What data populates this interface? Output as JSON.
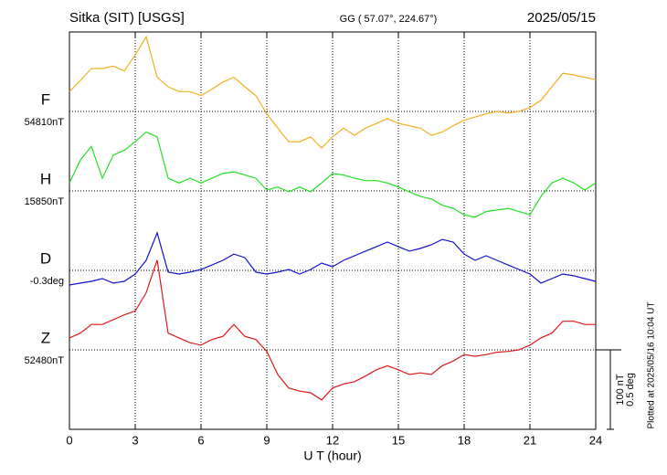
{
  "chart_data": {
    "type": "line",
    "title": "Sitka (SIT)  [USGS]",
    "subtitle": "GG ( 57.07°, 224.67°)",
    "date": "2025/05/15",
    "xlabel": "U T (hour)",
    "note": "Plotted at 2025/05/16 10:04 UT",
    "xlim": [
      0,
      24
    ],
    "xticks": [
      0,
      3,
      6,
      9,
      12,
      15,
      18,
      21,
      24
    ],
    "grid": true,
    "scale_bar": [
      {
        "value": 100,
        "label": "100 nT"
      },
      {
        "value": 0.5,
        "label": "0.5 deg"
      }
    ],
    "x": [
      0,
      0.5,
      1,
      1.5,
      2,
      2.5,
      3,
      3.5,
      4,
      4.5,
      5,
      5.5,
      6,
      6.5,
      7,
      7.5,
      8,
      8.5,
      9,
      9.5,
      10,
      10.5,
      11,
      11.5,
      12,
      12.5,
      13,
      13.5,
      14,
      14.5,
      15,
      15.5,
      16,
      16.5,
      17,
      17.5,
      18,
      18.5,
      19,
      19.5,
      20,
      20.5,
      21,
      21.5,
      22,
      22.5,
      23,
      23.5,
      24
    ],
    "series": [
      {
        "name": "F",
        "color": "#f0b020",
        "baseline": {
          "value": 54810,
          "label": "54810nT"
        },
        "values": [
          54835,
          54849,
          54864,
          54864,
          54867,
          54861,
          54881,
          54904,
          54853,
          54841,
          54835,
          54835,
          54830,
          54838,
          54847,
          54853,
          54841,
          54830,
          54807,
          54789,
          54772,
          54772,
          54778,
          54764,
          54778,
          54789,
          54780,
          54789,
          54795,
          54801,
          54795,
          54792,
          54789,
          54780,
          54784,
          54792,
          54799,
          54803,
          54807,
          54810,
          54808,
          54810,
          54815,
          54824,
          54841,
          54858,
          54856,
          54853,
          54850
        ]
      },
      {
        "name": "H",
        "color": "#22e022",
        "baseline": {
          "value": 15850,
          "label": "15850nT"
        },
        "values": [
          15860,
          15889,
          15906,
          15866,
          15895,
          15901,
          15912,
          15924,
          15918,
          15866,
          15860,
          15866,
          15860,
          15866,
          15872,
          15874,
          15870,
          15866,
          15851,
          15855,
          15849,
          15855,
          15849,
          15860,
          15872,
          15870,
          15866,
          15863,
          15863,
          15860,
          15855,
          15849,
          15843,
          15840,
          15832,
          15828,
          15820,
          15817,
          15824,
          15826,
          15828,
          15824,
          15820,
          15843,
          15860,
          15866,
          15860,
          15851,
          15860
        ]
      },
      {
        "name": "D",
        "color": "#1010d0",
        "baseline": {
          "value": -0.3,
          "label": "-0.3deg"
        },
        "values": [
          -0.392,
          -0.38,
          -0.369,
          -0.352,
          -0.38,
          -0.369,
          -0.323,
          -0.237,
          -0.064,
          -0.311,
          -0.323,
          -0.311,
          -0.294,
          -0.266,
          -0.237,
          -0.197,
          -0.22,
          -0.311,
          -0.323,
          -0.311,
          -0.294,
          -0.323,
          -0.294,
          -0.254,
          -0.277,
          -0.237,
          -0.208,
          -0.179,
          -0.151,
          -0.122,
          -0.151,
          -0.179,
          -0.162,
          -0.139,
          -0.105,
          -0.122,
          -0.197,
          -0.237,
          -0.208,
          -0.237,
          -0.266,
          -0.294,
          -0.323,
          -0.38,
          -0.352,
          -0.323,
          -0.334,
          -0.352,
          -0.369
        ]
      },
      {
        "name": "Z",
        "color": "#e01818",
        "baseline": {
          "value": 52480,
          "label": "52480nT"
        },
        "values": [
          52495,
          52501,
          52512,
          52512,
          52518,
          52524,
          52529,
          52552,
          52593,
          52501,
          52495,
          52489,
          52486,
          52493,
          52497,
          52512,
          52497,
          52493,
          52478,
          52449,
          52432,
          52428,
          52426,
          52417,
          52432,
          52437,
          52440,
          52447,
          52455,
          52460,
          52455,
          52449,
          52451,
          52449,
          52460,
          52466,
          52474,
          52472,
          52474,
          52477,
          52478,
          52480,
          52486,
          52495,
          52501,
          52516,
          52516,
          52512,
          52512
        ]
      }
    ]
  }
}
